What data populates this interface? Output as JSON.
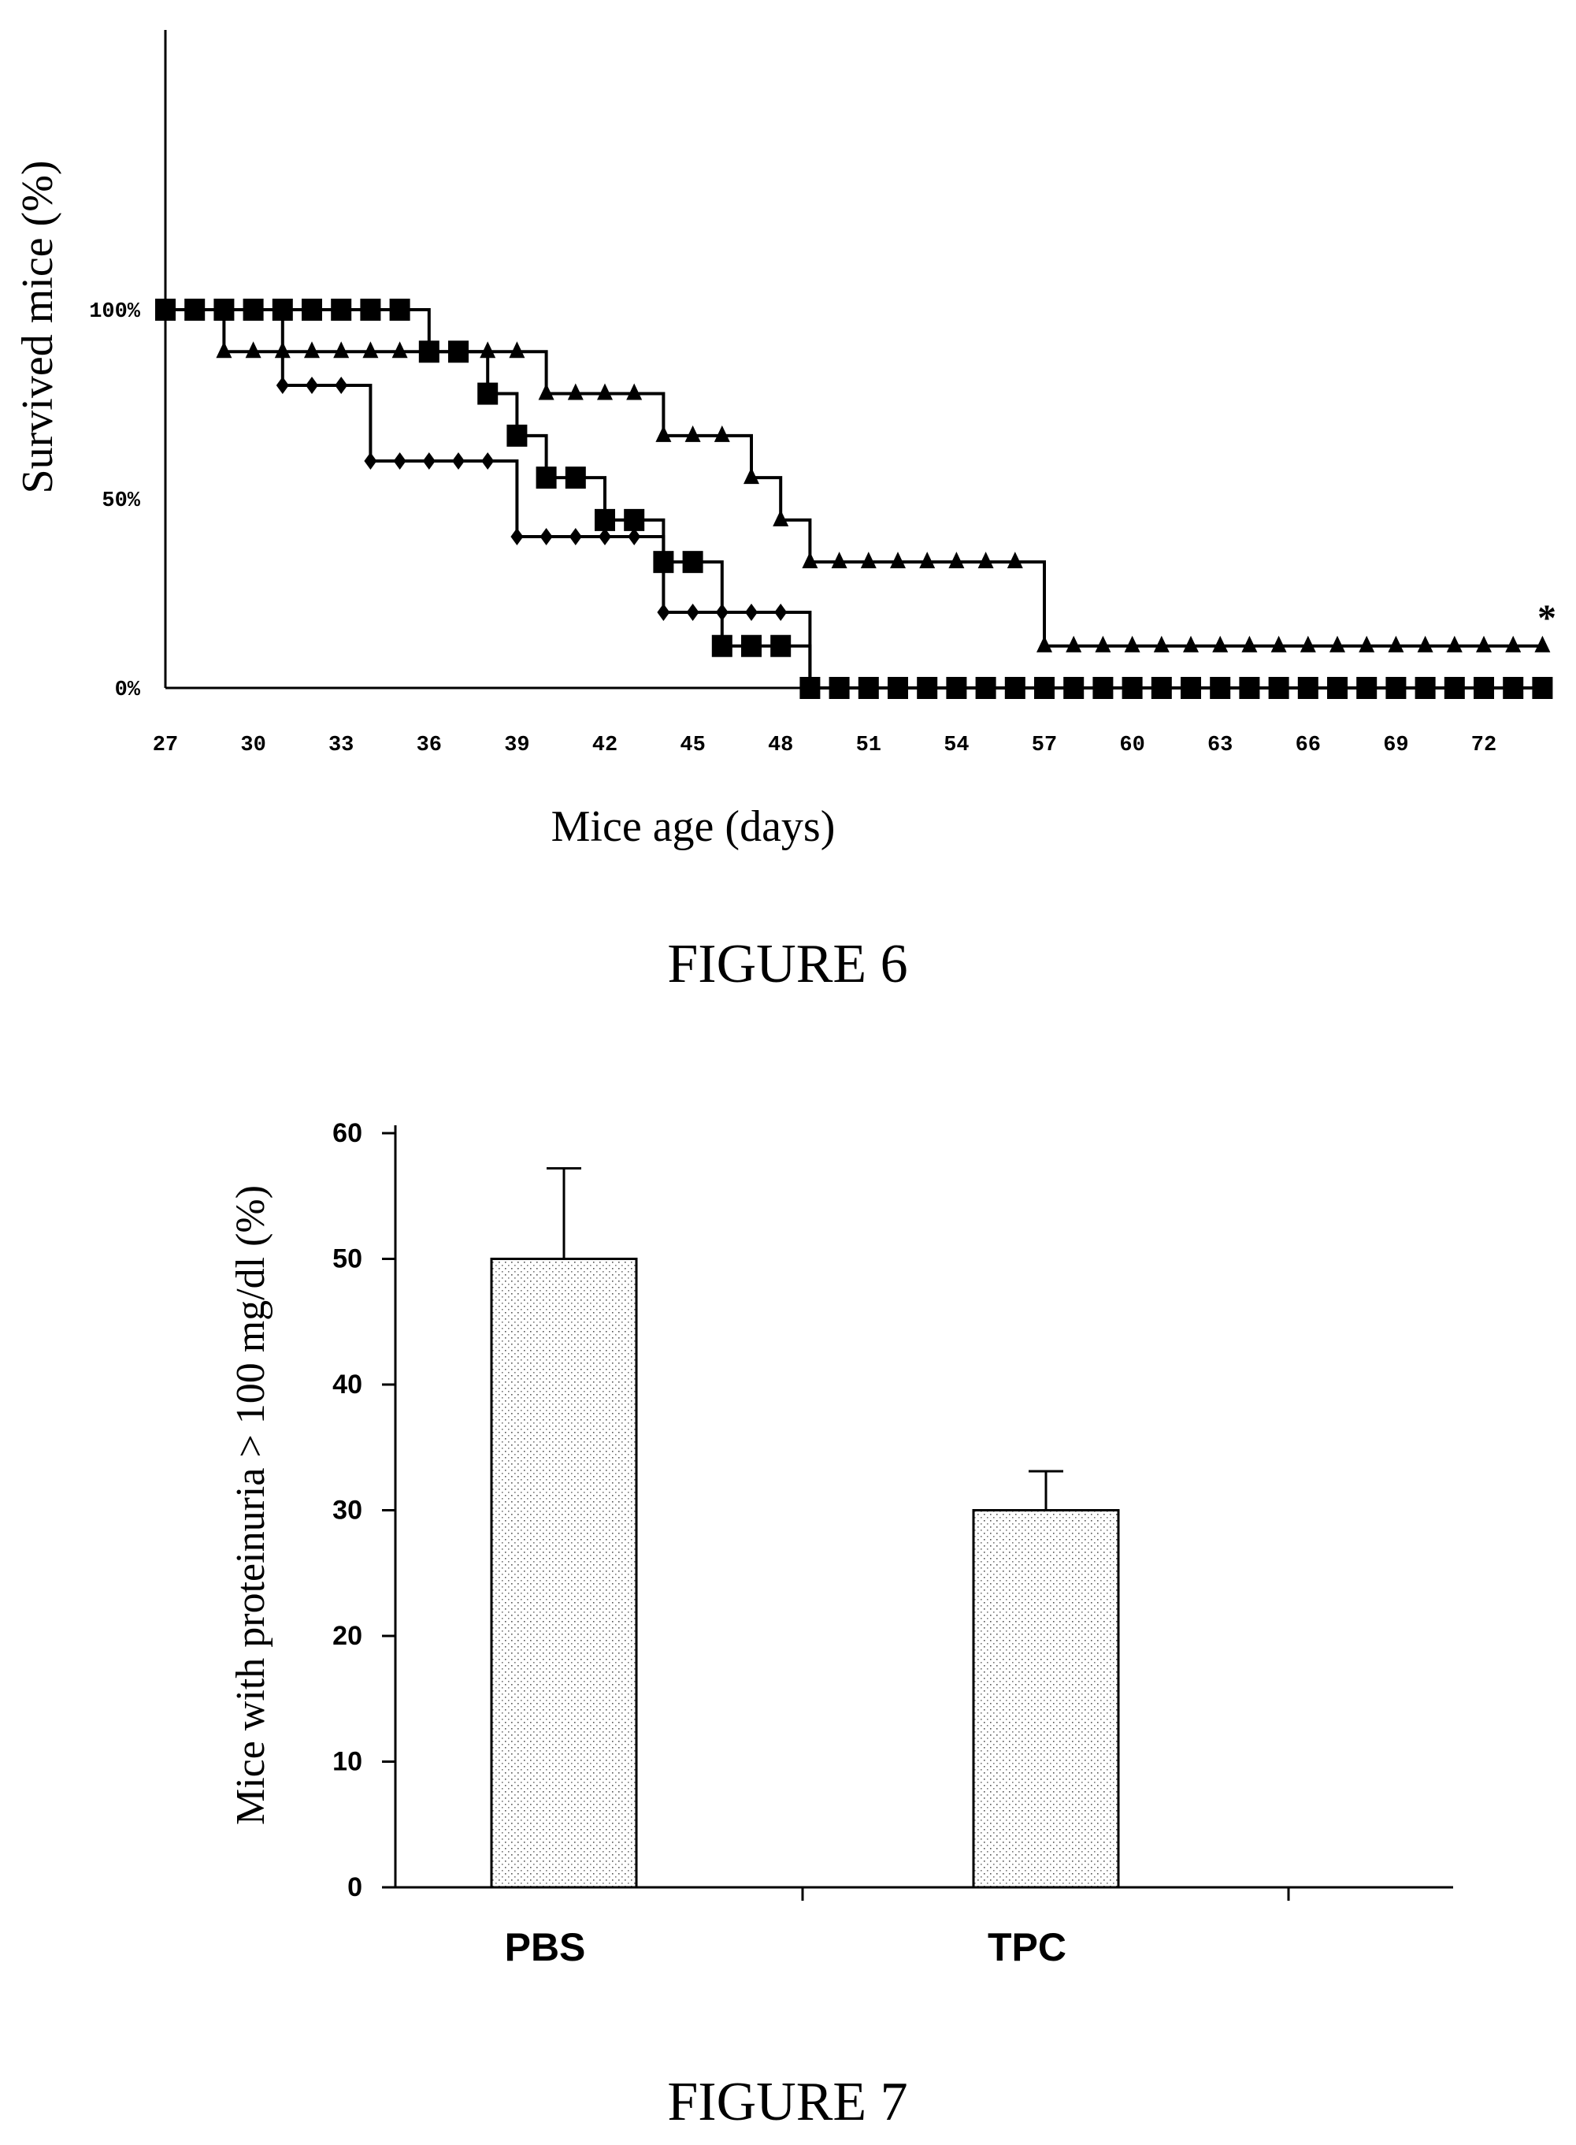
{
  "chart_data": [
    {
      "type": "line",
      "figure_label": "FIGURE 6",
      "xlabel": "Mice age (days)",
      "ylabel": "Survived mice (%)",
      "x_ticks": [
        "27",
        "30",
        "33",
        "36",
        "39",
        "42",
        "45",
        "48",
        "51",
        "54",
        "57",
        "60",
        "63",
        "66",
        "69",
        "72"
      ],
      "y_ticks": [
        "0%",
        "50%",
        "100%"
      ],
      "xlim": [
        27,
        74
      ],
      "ylim": [
        0,
        100
      ],
      "step": true,
      "series": [
        {
          "marker": "diamond",
          "x": [
            27,
            28,
            29,
            30,
            31,
            32,
            33,
            34,
            35,
            36,
            37,
            38,
            39,
            40,
            41,
            42,
            43,
            44,
            45,
            46,
            47,
            48,
            49
          ],
          "y": [
            100,
            100,
            100,
            100,
            80,
            80,
            80,
            60,
            60,
            60,
            60,
            60,
            40,
            40,
            40,
            40,
            40,
            20,
            20,
            20,
            20,
            20,
            0
          ]
        },
        {
          "marker": "square",
          "x": [
            27,
            28,
            29,
            30,
            31,
            32,
            33,
            34,
            35,
            36,
            37,
            38,
            39,
            40,
            41,
            42,
            43,
            44,
            45,
            46,
            47,
            48,
            49,
            50,
            51,
            52,
            53,
            54,
            55,
            56,
            57,
            58,
            59,
            60,
            61,
            62,
            63,
            64,
            65,
            66,
            67,
            68,
            69,
            70,
            71,
            72,
            73,
            74
          ],
          "y": [
            100,
            100,
            100,
            100,
            100,
            100,
            100,
            100,
            100,
            88.9,
            88.9,
            77.8,
            66.7,
            55.6,
            55.6,
            44.4,
            44.4,
            33.3,
            33.3,
            11.1,
            11.1,
            11.1,
            0,
            0,
            0,
            0,
            0,
            0,
            0,
            0,
            0,
            0,
            0,
            0,
            0,
            0,
            0,
            0,
            0,
            0,
            0,
            0,
            0,
            0,
            0,
            0,
            0,
            0
          ]
        },
        {
          "marker": "triangle",
          "x": [
            27,
            29,
            30,
            31,
            32,
            33,
            34,
            35,
            36,
            37,
            38,
            39,
            40,
            41,
            42,
            43,
            44,
            45,
            46,
            47,
            48,
            49,
            50,
            51,
            52,
            53,
            54,
            55,
            56,
            57,
            58,
            59,
            60,
            61,
            62,
            63,
            64,
            65,
            66,
            67,
            68,
            69,
            70,
            71,
            72,
            73,
            74
          ],
          "y": [
            100,
            88.9,
            88.9,
            88.9,
            88.9,
            88.9,
            88.9,
            88.9,
            88.9,
            88.9,
            88.9,
            88.9,
            77.8,
            77.8,
            77.8,
            77.8,
            66.7,
            66.7,
            66.7,
            55.6,
            44.4,
            33.3,
            33.3,
            33.3,
            33.3,
            33.3,
            33.3,
            33.3,
            33.3,
            11.1,
            11.1,
            11.1,
            11.1,
            11.1,
            11.1,
            11.1,
            11.1,
            11.1,
            11.1,
            11.1,
            11.1,
            11.1,
            11.1,
            11.1,
            11.1,
            11.1,
            11.1
          ]
        }
      ],
      "annotations": [
        "*"
      ]
    },
    {
      "type": "bar",
      "figure_label": "FIGURE 7",
      "ylabel": "Mice with proteinuria > 100 mg/dl (%)",
      "categories": [
        "PBS",
        "TPC"
      ],
      "values": [
        50,
        30
      ],
      "error": [
        7.2,
        3.1
      ],
      "y_ticks": [
        "0",
        "10",
        "20",
        "30",
        "40",
        "50",
        "60"
      ],
      "ylim": [
        0,
        60
      ]
    }
  ]
}
